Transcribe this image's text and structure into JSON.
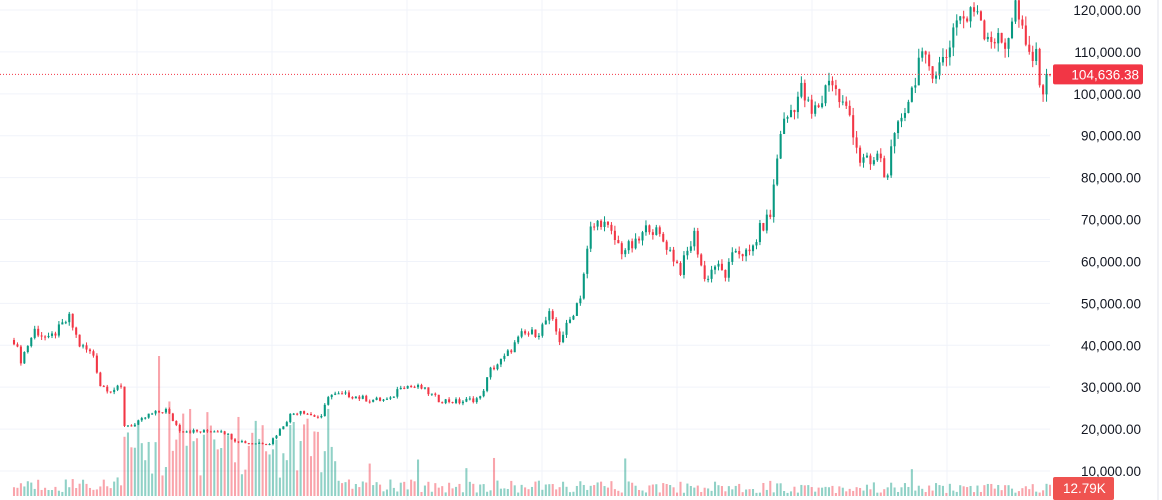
{
  "chart_data": {
    "type": "candlestick",
    "title": "",
    "xlabel": "",
    "ylabel": "",
    "ylim": [
      10000,
      120000
    ],
    "y_ticks": [
      "120,000.00",
      "110,000.00",
      "100,000.00",
      "90,000.00",
      "80,000.00",
      "70,000.00",
      "60,000.00",
      "50,000.00",
      "40,000.00",
      "30,000.00",
      "20,000.00",
      "10,000.00"
    ],
    "y_tick_values": [
      120000,
      110000,
      100000,
      90000,
      80000,
      70000,
      60000,
      50000,
      40000,
      30000,
      20000,
      10000
    ],
    "grid": true,
    "bar_count": 300,
    "close_path": [
      [
        0,
        41260
      ],
      [
        2,
        36490
      ],
      [
        6,
        43650
      ],
      [
        10,
        41260
      ],
      [
        16,
        46510
      ],
      [
        19,
        40070
      ],
      [
        23,
        37680
      ],
      [
        25,
        30520
      ],
      [
        28,
        29330
      ],
      [
        31,
        29800
      ],
      [
        32,
        20970
      ],
      [
        35,
        20970
      ],
      [
        39,
        23360
      ],
      [
        44,
        24560
      ],
      [
        48,
        19790
      ],
      [
        54,
        19310
      ],
      [
        60,
        19790
      ],
      [
        64,
        17400
      ],
      [
        68,
        16690
      ],
      [
        74,
        16690
      ],
      [
        77,
        19790
      ],
      [
        80,
        23360
      ],
      [
        83,
        24560
      ],
      [
        86,
        23360
      ],
      [
        89,
        22640
      ],
      [
        91,
        28140
      ],
      [
        97,
        28140
      ],
      [
        103,
        26950
      ],
      [
        109,
        26950
      ],
      [
        112,
        30520
      ],
      [
        118,
        29800
      ],
      [
        123,
        26950
      ],
      [
        129,
        26470
      ],
      [
        135,
        27420
      ],
      [
        138,
        34100
      ],
      [
        142,
        36970
      ],
      [
        147,
        42450
      ],
      [
        152,
        43170
      ],
      [
        155,
        47230
      ],
      [
        158,
        41260
      ],
      [
        161,
        46030
      ],
      [
        164,
        52000
      ],
      [
        167,
        67510
      ],
      [
        170,
        69900
      ],
      [
        173,
        66320
      ],
      [
        176,
        62740
      ],
      [
        180,
        63930
      ],
      [
        184,
        68700
      ],
      [
        189,
        63930
      ],
      [
        193,
        57960
      ],
      [
        197,
        66320
      ],
      [
        200,
        55580
      ],
      [
        203,
        59160
      ],
      [
        206,
        56770
      ],
      [
        209,
        62740
      ],
      [
        213,
        61540
      ],
      [
        216,
        67510
      ],
      [
        219,
        71090
      ],
      [
        222,
        91370
      ],
      [
        225,
        96140
      ],
      [
        228,
        100910
      ],
      [
        231,
        94950
      ],
      [
        234,
        98530
      ],
      [
        236,
        104490
      ],
      [
        239,
        98530
      ],
      [
        242,
        94950
      ],
      [
        245,
        84210
      ],
      [
        248,
        83020
      ],
      [
        251,
        85400
      ],
      [
        252,
        79440
      ],
      [
        254,
        85400
      ],
      [
        257,
        94950
      ],
      [
        260,
        100910
      ],
      [
        262,
        108070
      ],
      [
        267,
        105690
      ],
      [
        270,
        109260
      ],
      [
        273,
        118810
      ],
      [
        276,
        117610
      ],
      [
        279,
        121190
      ],
      [
        281,
        115230
      ],
      [
        284,
        112840
      ],
      [
        287,
        111650
      ],
      [
        290,
        121190
      ],
      [
        293,
        110460
      ],
      [
        296,
        108070
      ],
      [
        298,
        100910
      ],
      [
        300,
        104636
      ]
    ],
    "volume_profile": [
      [
        0,
        0.08
      ],
      [
        30,
        0.1
      ],
      [
        32,
        0.35
      ],
      [
        60,
        0.45
      ],
      [
        78,
        0.35
      ],
      [
        92,
        0.45
      ],
      [
        94,
        0.08
      ],
      [
        300,
        0.06
      ]
    ],
    "volume_ylim": [
      0,
      1
    ],
    "last_price": 104636.38,
    "last_price_label": "104,636.38",
    "last_volume_label": "12.79K",
    "colors": {
      "up": "#089981",
      "down": "#f23645",
      "grid": "#f0f3fa",
      "price_line": "#f23645"
    }
  }
}
